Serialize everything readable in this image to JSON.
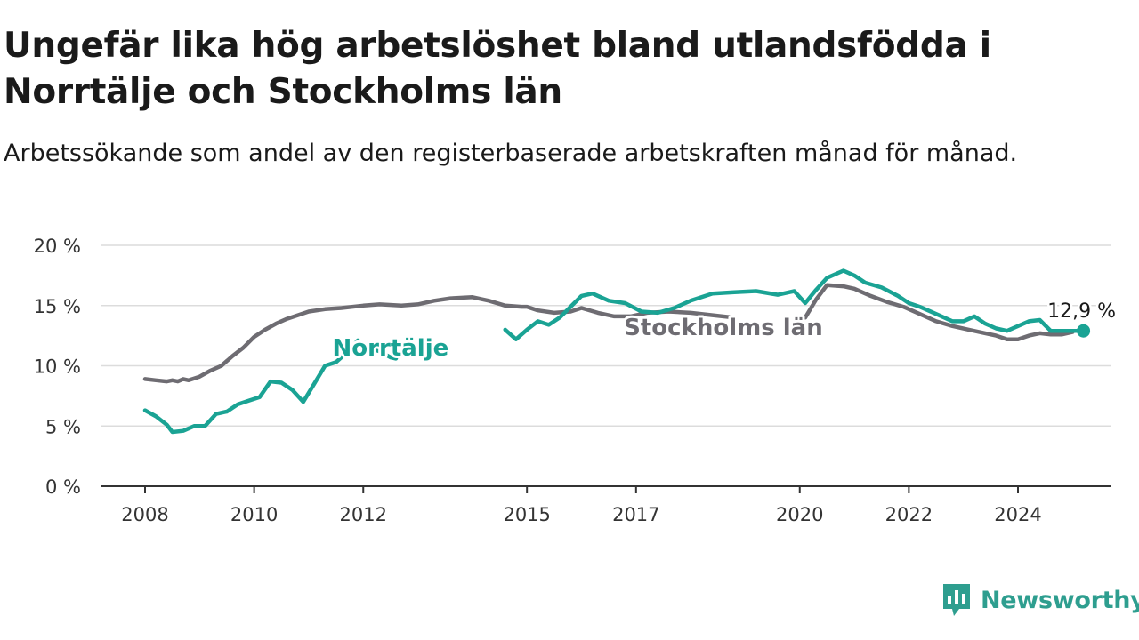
{
  "title": "Ungefär lika hög arbetslöshet bland utlandsfödda i Norrtälje och Stockholms län",
  "subtitle": "Arbetssökande som andel av den registerbaserade arbetskraften månad för månad.",
  "brand": {
    "name": "Newsworthy",
    "icon": "newsworthy-chart-icon",
    "color": "#2e9e8f"
  },
  "chart_data": {
    "type": "line",
    "title": "Ungefär lika hög arbetslöshet bland utlandsfödda i Norrtälje och Stockholms län",
    "subtitle": "Arbetssökande som andel av den registerbaserade arbetskraften månad för månad.",
    "xlabel": "",
    "ylabel": "",
    "xlim": [
      2007.8,
      2025.3
    ],
    "ylim": [
      0,
      20
    ],
    "x_ticks": [
      2008,
      2010,
      2012,
      2015,
      2017,
      2020,
      2022,
      2024
    ],
    "x_tick_labels": [
      "2008",
      "2010",
      "2012",
      "2015",
      "2017",
      "2020",
      "2022",
      "2024"
    ],
    "y_ticks": [
      0,
      5,
      10,
      15,
      20
    ],
    "y_tick_labels": [
      "0 %",
      "5 %",
      "10 %",
      "15 %",
      "20 %"
    ],
    "grid": true,
    "legend": "inline labels",
    "last_value_label": "12,9 %",
    "series": [
      {
        "name": "Stockholms län",
        "color": "#6e6c72",
        "label_position": {
          "x": 2018.6,
          "y": 13.2
        },
        "segments": [
          [
            [
              2008.0,
              8.9
            ],
            [
              2008.2,
              8.8
            ],
            [
              2008.4,
              8.7
            ],
            [
              2008.5,
              8.8
            ],
            [
              2008.6,
              8.7
            ],
            [
              2008.7,
              8.9
            ],
            [
              2008.8,
              8.8
            ],
            [
              2009.0,
              9.1
            ],
            [
              2009.2,
              9.6
            ],
            [
              2009.4,
              10.0
            ],
            [
              2009.6,
              10.8
            ],
            [
              2009.8,
              11.5
            ],
            [
              2010.0,
              12.4
            ],
            [
              2010.2,
              13.0
            ],
            [
              2010.4,
              13.5
            ],
            [
              2010.6,
              13.9
            ],
            [
              2010.8,
              14.2
            ],
            [
              2011.0,
              14.5
            ],
            [
              2011.3,
              14.7
            ],
            [
              2011.6,
              14.8
            ],
            [
              2012.0,
              15.0
            ],
            [
              2012.3,
              15.1
            ],
            [
              2012.7,
              15.0
            ],
            [
              2013.0,
              15.1
            ],
            [
              2013.3,
              15.4
            ],
            [
              2013.6,
              15.6
            ],
            [
              2014.0,
              15.7
            ],
            [
              2014.3,
              15.4
            ],
            [
              2014.6,
              15.0
            ],
            [
              2014.9,
              14.9
            ],
            [
              2015.0,
              14.9
            ],
            [
              2015.2,
              14.6
            ],
            [
              2015.5,
              14.4
            ],
            [
              2015.8,
              14.5
            ],
            [
              2016.0,
              14.8
            ],
            [
              2016.3,
              14.4
            ],
            [
              2016.6,
              14.1
            ],
            [
              2016.9,
              14.1
            ],
            [
              2017.2,
              14.4
            ],
            [
              2017.6,
              14.5
            ],
            [
              2018.0,
              14.4
            ],
            [
              2018.4,
              14.2
            ],
            [
              2018.8,
              14.0
            ]
          ],
          [
            [
              2020.1,
              14.0
            ],
            [
              2020.3,
              15.5
            ],
            [
              2020.5,
              16.7
            ],
            [
              2020.8,
              16.6
            ],
            [
              2021.0,
              16.4
            ],
            [
              2021.3,
              15.8
            ],
            [
              2021.6,
              15.3
            ],
            [
              2021.9,
              14.9
            ],
            [
              2022.2,
              14.3
            ],
            [
              2022.5,
              13.7
            ],
            [
              2022.8,
              13.3
            ],
            [
              2023.1,
              13.0
            ],
            [
              2023.4,
              12.7
            ],
            [
              2023.6,
              12.5
            ],
            [
              2023.8,
              12.2
            ],
            [
              2024.0,
              12.2
            ],
            [
              2024.2,
              12.5
            ],
            [
              2024.4,
              12.7
            ],
            [
              2024.6,
              12.6
            ],
            [
              2024.8,
              12.6
            ],
            [
              2025.0,
              12.8
            ]
          ]
        ]
      },
      {
        "name": "Norrtälje",
        "color": "#1aa394",
        "label_position": {
          "x": 2012.5,
          "y": 11.5
        },
        "last_point": {
          "x": 2025.2,
          "y": 12.9
        },
        "segments": [
          [
            [
              2008.0,
              6.3
            ],
            [
              2008.2,
              5.8
            ],
            [
              2008.4,
              5.1
            ],
            [
              2008.5,
              4.5
            ],
            [
              2008.7,
              4.6
            ],
            [
              2008.9,
              5.0
            ],
            [
              2009.1,
              5.0
            ],
            [
              2009.3,
              6.0
            ],
            [
              2009.5,
              6.2
            ],
            [
              2009.7,
              6.8
            ],
            [
              2009.9,
              7.1
            ],
            [
              2010.1,
              7.4
            ],
            [
              2010.3,
              8.7
            ],
            [
              2010.5,
              8.6
            ],
            [
              2010.7,
              8.0
            ],
            [
              2010.9,
              7.0
            ],
            [
              2011.1,
              8.5
            ],
            [
              2011.3,
              10.0
            ],
            [
              2011.5,
              10.3
            ],
            [
              2011.7,
              11.1
            ],
            [
              2011.9,
              12.1
            ],
            [
              2012.1,
              11.5
            ],
            [
              2012.3,
              11.2
            ],
            [
              2012.5,
              10.7
            ],
            [
              2012.6,
              10.6
            ]
          ],
          [
            [
              2014.6,
              13.0
            ],
            [
              2014.8,
              12.2
            ],
            [
              2015.0,
              13.0
            ],
            [
              2015.2,
              13.7
            ],
            [
              2015.4,
              13.4
            ],
            [
              2015.6,
              14.0
            ],
            [
              2015.8,
              14.9
            ],
            [
              2016.0,
              15.8
            ],
            [
              2016.2,
              16.0
            ],
            [
              2016.5,
              15.4
            ],
            [
              2016.8,
              15.2
            ],
            [
              2017.1,
              14.5
            ],
            [
              2017.4,
              14.4
            ],
            [
              2017.7,
              14.8
            ],
            [
              2018.0,
              15.4
            ],
            [
              2018.4,
              16.0
            ],
            [
              2018.8,
              16.1
            ],
            [
              2019.2,
              16.2
            ],
            [
              2019.6,
              15.9
            ],
            [
              2019.9,
              16.2
            ],
            [
              2020.1,
              15.2
            ],
            [
              2020.3,
              16.3
            ],
            [
              2020.5,
              17.3
            ],
            [
              2020.8,
              17.9
            ],
            [
              2021.0,
              17.5
            ],
            [
              2021.2,
              16.9
            ],
            [
              2021.5,
              16.5
            ],
            [
              2021.8,
              15.8
            ],
            [
              2022.0,
              15.2
            ],
            [
              2022.2,
              14.9
            ],
            [
              2022.5,
              14.3
            ],
            [
              2022.8,
              13.7
            ],
            [
              2023.0,
              13.7
            ],
            [
              2023.2,
              14.1
            ],
            [
              2023.4,
              13.5
            ],
            [
              2023.6,
              13.1
            ],
            [
              2023.8,
              12.9
            ],
            [
              2024.0,
              13.3
            ],
            [
              2024.2,
              13.7
            ],
            [
              2024.4,
              13.8
            ],
            [
              2024.6,
              12.9
            ],
            [
              2024.8,
              12.9
            ],
            [
              2025.2,
              12.9
            ]
          ]
        ]
      }
    ]
  }
}
